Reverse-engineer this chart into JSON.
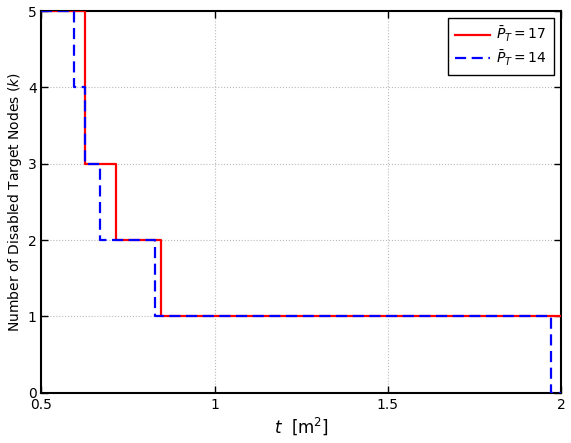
{
  "title": "",
  "xlabel": "$t$  [m$^2$]",
  "ylabel": "Number of Disabled Target Nodes ($k$)",
  "xlim": [
    0.5,
    2.0
  ],
  "ylim": [
    0,
    5
  ],
  "yticks": [
    0,
    1,
    2,
    3,
    4,
    5
  ],
  "xticks": [
    0.5,
    1.0,
    1.5,
    2.0
  ],
  "xticklabels": [
    "0.5",
    "1",
    "1.5",
    "2"
  ],
  "red_x": [
    0.5,
    0.625,
    0.625,
    0.715,
    0.715,
    0.845,
    0.845,
    2.0
  ],
  "red_y": [
    5,
    5,
    3,
    3,
    2,
    2,
    1,
    1
  ],
  "blue_x": [
    0.5,
    0.593,
    0.593,
    0.625,
    0.625,
    0.668,
    0.668,
    0.828,
    0.828,
    1.972,
    1.972,
    2.0
  ],
  "blue_y": [
    5,
    5,
    4,
    4,
    3,
    3,
    2,
    2,
    1,
    1,
    0,
    0
  ],
  "red_color": "#ff0000",
  "blue_color": "#0000ff",
  "legend_labels": [
    "$\\bar{P}_T = 17$",
    "$\\bar{P}_T = 14$"
  ],
  "grid_color": "#bbbbbb",
  "background_color": "#ffffff"
}
